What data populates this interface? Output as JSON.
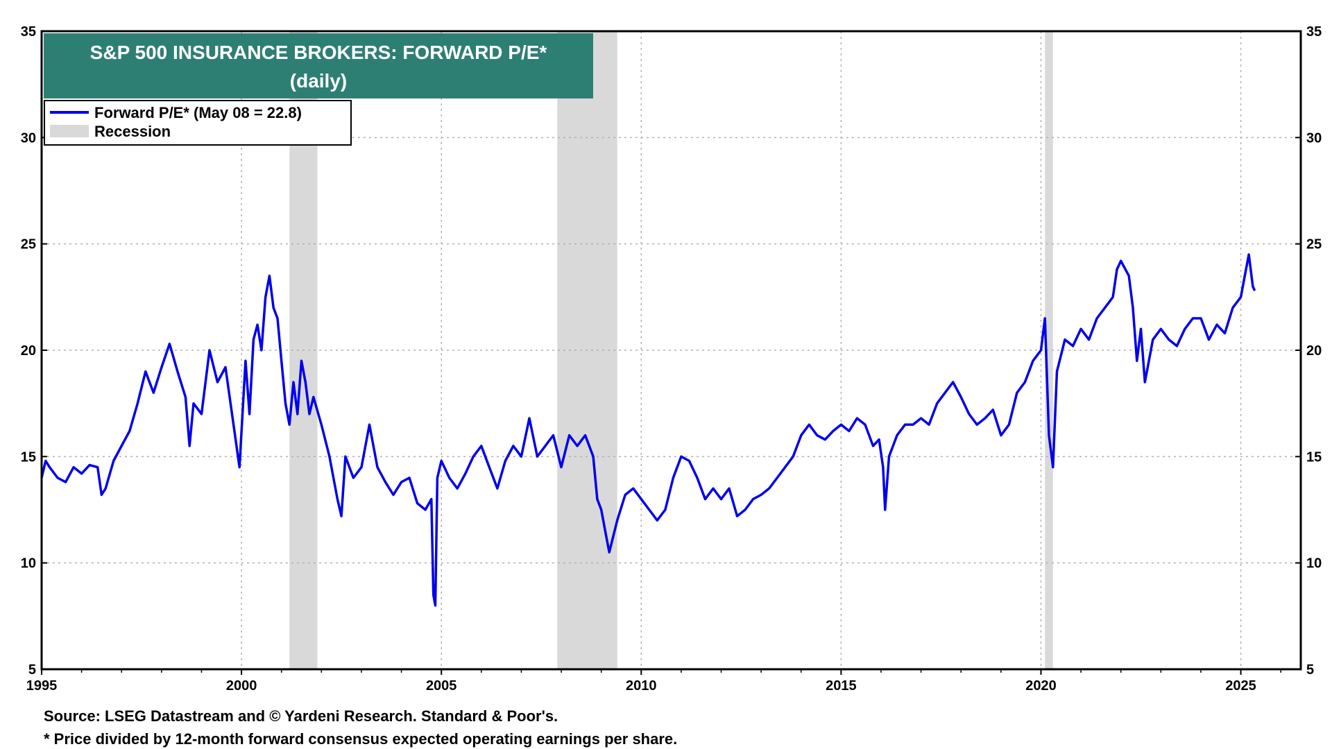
{
  "chart_data": {
    "type": "line",
    "title": "S&P 500 INSURANCE BROKERS: FORWARD P/E*",
    "subtitle": "(daily)",
    "xlabel": "",
    "ylabel": "",
    "xlim": [
      1995,
      2026.5
    ],
    "ylim": [
      5,
      35
    ],
    "x_ticks": [
      1995,
      2000,
      2005,
      2010,
      2015,
      2020,
      2025
    ],
    "x_tick_labels": [
      "1995",
      "2000",
      "2005",
      "2010",
      "2015",
      "2020",
      "2025"
    ],
    "y_ticks": [
      5,
      10,
      15,
      20,
      25,
      30,
      35
    ],
    "y_tick_labels": [
      "5",
      "10",
      "15",
      "20",
      "25",
      "30",
      "35"
    ],
    "grid": true,
    "legend_position": "top-left",
    "legend": [
      {
        "label": "Forward P/E* (May 08 = 22.8)",
        "kind": "line",
        "color": "#0000ee"
      },
      {
        "label": "Recession",
        "kind": "box",
        "color": "#d9d9d9"
      }
    ],
    "recessions": [
      [
        2001.2,
        2001.9
      ],
      [
        2007.9,
        2009.4
      ],
      [
        2020.1,
        2020.3
      ]
    ],
    "series": [
      {
        "name": "Forward P/E*",
        "color": "#0000ee",
        "x": [
          1995.0,
          1995.1,
          1995.2,
          1995.4,
          1995.6,
          1995.8,
          1996.0,
          1996.2,
          1996.4,
          1996.5,
          1996.6,
          1996.8,
          1997.0,
          1997.2,
          1997.4,
          1997.6,
          1997.8,
          1998.0,
          1998.2,
          1998.4,
          1998.6,
          1998.7,
          1998.8,
          1999.0,
          1999.2,
          1999.4,
          1999.6,
          1999.8,
          1999.95,
          2000.1,
          2000.2,
          2000.3,
          2000.4,
          2000.5,
          2000.6,
          2000.7,
          2000.8,
          2000.9,
          2001.0,
          2001.1,
          2001.2,
          2001.3,
          2001.4,
          2001.5,
          2001.6,
          2001.7,
          2001.8,
          2002.0,
          2002.2,
          2002.4,
          2002.5,
          2002.6,
          2002.8,
          2003.0,
          2003.2,
          2003.4,
          2003.6,
          2003.8,
          2004.0,
          2004.2,
          2004.4,
          2004.6,
          2004.75,
          2004.8,
          2004.85,
          2004.9,
          2005.0,
          2005.2,
          2005.4,
          2005.6,
          2005.8,
          2006.0,
          2006.2,
          2006.4,
          2006.6,
          2006.8,
          2007.0,
          2007.2,
          2007.4,
          2007.6,
          2007.8,
          2008.0,
          2008.2,
          2008.4,
          2008.6,
          2008.8,
          2008.9,
          2009.0,
          2009.1,
          2009.2,
          2009.4,
          2009.6,
          2009.8,
          2010.0,
          2010.2,
          2010.4,
          2010.6,
          2010.8,
          2011.0,
          2011.2,
          2011.4,
          2011.6,
          2011.8,
          2012.0,
          2012.2,
          2012.4,
          2012.6,
          2012.8,
          2013.0,
          2013.2,
          2013.4,
          2013.6,
          2013.8,
          2014.0,
          2014.2,
          2014.4,
          2014.6,
          2014.8,
          2015.0,
          2015.2,
          2015.4,
          2015.6,
          2015.8,
          2015.95,
          2016.05,
          2016.1,
          2016.2,
          2016.4,
          2016.6,
          2016.8,
          2017.0,
          2017.2,
          2017.4,
          2017.6,
          2017.8,
          2018.0,
          2018.2,
          2018.4,
          2018.6,
          2018.8,
          2019.0,
          2019.2,
          2019.4,
          2019.6,
          2019.8,
          2020.0,
          2020.1,
          2020.2,
          2020.3,
          2020.4,
          2020.6,
          2020.8,
          2021.0,
          2021.2,
          2021.4,
          2021.6,
          2021.8,
          2021.9,
          2022.0,
          2022.2,
          2022.3,
          2022.4,
          2022.5,
          2022.6,
          2022.8,
          2023.0,
          2023.2,
          2023.4,
          2023.6,
          2023.8,
          2024.0,
          2024.2,
          2024.4,
          2024.6,
          2024.8,
          2025.0,
          2025.1,
          2025.2,
          2025.3,
          2025.35
        ],
        "y": [
          14.0,
          14.8,
          14.5,
          14.0,
          13.8,
          14.5,
          14.2,
          14.6,
          14.5,
          13.2,
          13.5,
          14.8,
          15.5,
          16.2,
          17.5,
          19.0,
          18.0,
          19.2,
          20.3,
          19.0,
          17.8,
          15.5,
          17.5,
          17.0,
          20.0,
          18.5,
          19.2,
          16.5,
          14.5,
          19.5,
          17.0,
          20.5,
          21.2,
          20.0,
          22.5,
          23.5,
          22.0,
          21.5,
          19.5,
          17.5,
          16.5,
          18.5,
          17.0,
          19.5,
          18.5,
          17.0,
          17.8,
          16.5,
          15.0,
          13.0,
          12.2,
          15.0,
          14.0,
          14.5,
          16.5,
          14.5,
          13.8,
          13.2,
          13.8,
          14.0,
          12.8,
          12.5,
          13.0,
          8.5,
          8.0,
          14.0,
          14.8,
          14.0,
          13.5,
          14.2,
          15.0,
          15.5,
          14.5,
          13.5,
          14.8,
          15.5,
          15.0,
          16.8,
          15.0,
          15.5,
          16.0,
          14.5,
          16.0,
          15.5,
          16.0,
          15.0,
          13.0,
          12.5,
          11.5,
          10.5,
          12.0,
          13.2,
          13.5,
          13.0,
          12.5,
          12.0,
          12.5,
          14.0,
          15.0,
          14.8,
          14.0,
          13.0,
          13.5,
          13.0,
          13.5,
          12.2,
          12.5,
          13.0,
          13.2,
          13.5,
          14.0,
          14.5,
          15.0,
          16.0,
          16.5,
          16.0,
          15.8,
          16.2,
          16.5,
          16.2,
          16.8,
          16.5,
          15.5,
          15.8,
          14.5,
          12.5,
          15.0,
          16.0,
          16.5,
          16.5,
          16.8,
          16.5,
          17.5,
          18.0,
          18.5,
          17.8,
          17.0,
          16.5,
          16.8,
          17.2,
          16.0,
          16.5,
          18.0,
          18.5,
          19.5,
          20.0,
          21.5,
          16.0,
          14.5,
          19.0,
          20.5,
          20.2,
          21.0,
          20.5,
          21.5,
          22.0,
          22.5,
          23.8,
          24.2,
          23.5,
          22.0,
          19.5,
          21.0,
          18.5,
          20.5,
          21.0,
          20.5,
          20.2,
          21.0,
          21.5,
          21.5,
          20.5,
          21.2,
          20.8,
          22.0,
          22.5,
          23.5,
          24.5,
          23.0,
          22.8
        ]
      }
    ],
    "footnotes": [
      "Source: LSEG Datastream and © Yardeni Research. Standard & Poor's.",
      "* Price divided by 12-month forward consensus expected operating earnings per share."
    ]
  },
  "colors": {
    "title_bg": "#2e7f73",
    "line": "#0000ee",
    "recession": "#d9d9d9"
  }
}
